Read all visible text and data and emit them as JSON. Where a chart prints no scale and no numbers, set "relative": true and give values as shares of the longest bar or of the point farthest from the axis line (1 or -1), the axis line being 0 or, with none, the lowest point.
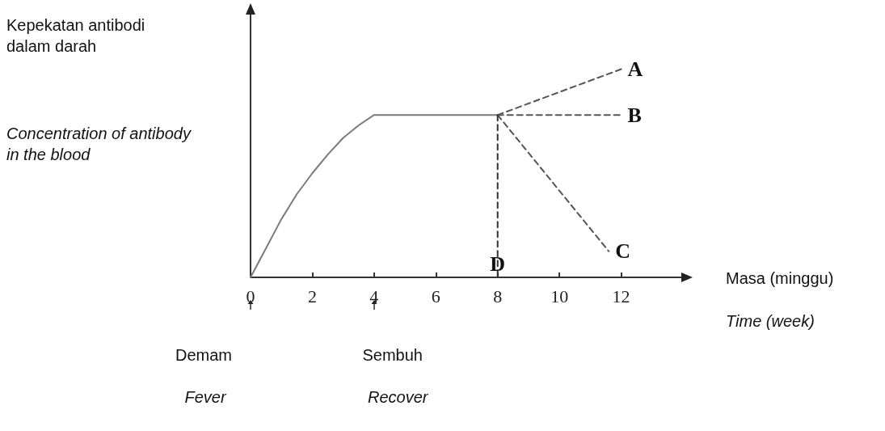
{
  "chart_data": {
    "type": "line",
    "relative": true,
    "xlabel": "Masa (minggu)",
    "xlim": [
      0,
      14
    ],
    "xticks": [
      0,
      2,
      4,
      6,
      8,
      10,
      12
    ],
    "grid": false,
    "marker": "none",
    "annotations": [
      "Kepekatan antibodi dalam darah",
      "Concentration of antibody in the blood",
      "Time (week)",
      "Demam",
      "Fever",
      "Sembuh",
      "Recover"
    ],
    "series": [
      {
        "color": "#7a7a7a",
        "line_style": "solid",
        "x": [
          0,
          0.5,
          1,
          1.5,
          2,
          2.5,
          3,
          3.5,
          4,
          8
        ],
        "values": [
          0,
          0.14,
          0.28,
          0.4,
          0.5,
          0.59,
          0.67,
          0.73,
          0.78,
          0.78
        ]
      },
      {
        "name": "A",
        "color": "#555555",
        "line_style": "dashed",
        "x": [
          8,
          12
        ],
        "values": [
          0.78,
          1
        ]
      },
      {
        "name": "B",
        "color": "#555555",
        "line_style": "dashed",
        "x": [
          8,
          12
        ],
        "values": [
          0.78,
          0.78
        ]
      },
      {
        "name": "C",
        "color": "#555555",
        "line_style": "dashed",
        "x": [
          8,
          11.6
        ],
        "values": [
          0.78,
          0.125
        ]
      },
      {
        "name": "D",
        "color": "#333333",
        "line_style": "dashed",
        "x": [
          8,
          8
        ],
        "values": [
          0.78,
          0
        ]
      }
    ]
  }
}
